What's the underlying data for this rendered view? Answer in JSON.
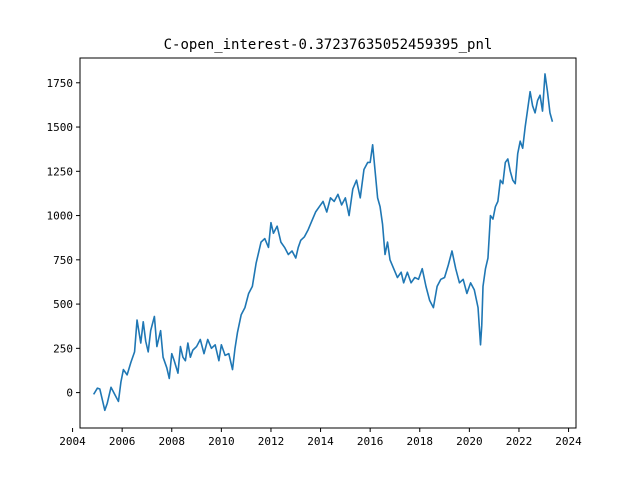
{
  "chart_data": {
    "type": "line",
    "title": "C-open_interest-0.37237635052459395_pnl",
    "xlabel": "",
    "ylabel": "",
    "xlim": [
      2004.3,
      2024.3
    ],
    "ylim": [
      -200,
      1890
    ],
    "x_ticks": [
      2004,
      2006,
      2008,
      2010,
      2012,
      2014,
      2016,
      2018,
      2020,
      2022,
      2024
    ],
    "x_tick_labels": [
      "2004",
      "2006",
      "2008",
      "2010",
      "2012",
      "2014",
      "2016",
      "2018",
      "2020",
      "2022",
      "2024"
    ],
    "y_ticks": [
      0,
      250,
      500,
      750,
      1000,
      1250,
      1500,
      1750
    ],
    "y_tick_labels": [
      "0",
      "250",
      "500",
      "750",
      "1000",
      "1250",
      "1500",
      "1750"
    ],
    "grid": false,
    "legend": "none",
    "color": "#1f77b4",
    "series": [
      {
        "x": [
          2004.85,
          2005.0,
          2005.1,
          2005.2,
          2005.3,
          2005.4,
          2005.55,
          2005.7,
          2005.85,
          2005.95,
          2006.05,
          2006.2,
          2006.35,
          2006.5,
          2006.6,
          2006.75,
          2006.85,
          2006.95,
          2007.05,
          2007.15,
          2007.3,
          2007.4,
          2007.55,
          2007.65,
          2007.8,
          2007.9,
          2008.0,
          2008.1,
          2008.25,
          2008.35,
          2008.45,
          2008.55,
          2008.65,
          2008.75,
          2008.85,
          2009.0,
          2009.15,
          2009.3,
          2009.45,
          2009.6,
          2009.75,
          2009.9,
          2010.0,
          2010.15,
          2010.3,
          2010.45,
          2010.55,
          2010.65,
          2010.8,
          2010.95,
          2011.1,
          2011.25,
          2011.4,
          2011.6,
          2011.75,
          2011.9,
          2012.0,
          2012.1,
          2012.25,
          2012.4,
          2012.55,
          2012.7,
          2012.85,
          2013.0,
          2013.1,
          2013.2,
          2013.35,
          2013.5,
          2013.65,
          2013.8,
          2013.95,
          2014.1,
          2014.25,
          2014.4,
          2014.55,
          2014.7,
          2014.85,
          2015.0,
          2015.15,
          2015.3,
          2015.45,
          2015.6,
          2015.75,
          2015.9,
          2016.0,
          2016.1,
          2016.2,
          2016.3,
          2016.4,
          2016.5,
          2016.6,
          2016.7,
          2016.8,
          2016.95,
          2017.1,
          2017.25,
          2017.35,
          2017.5,
          2017.65,
          2017.8,
          2017.95,
          2018.1,
          2018.25,
          2018.4,
          2018.55,
          2018.7,
          2018.85,
          2019.0,
          2019.15,
          2019.3,
          2019.45,
          2019.6,
          2019.75,
          2019.9,
          2020.05,
          2020.2,
          2020.35,
          2020.45,
          2020.5,
          2020.55,
          2020.65,
          2020.75,
          2020.85,
          2020.95,
          2021.05,
          2021.15,
          2021.25,
          2021.35,
          2021.45,
          2021.55,
          2021.65,
          2021.75,
          2021.85,
          2021.95,
          2022.05,
          2022.15,
          2022.25,
          2022.35,
          2022.45,
          2022.55,
          2022.65,
          2022.75,
          2022.85,
          2022.95,
          2023.05,
          2023.15,
          2023.25,
          2023.35
        ],
        "y": [
          -10,
          25,
          20,
          -40,
          -100,
          -60,
          30,
          -10,
          -50,
          60,
          130,
          100,
          170,
          230,
          410,
          280,
          400,
          290,
          230,
          350,
          430,
          260,
          350,
          200,
          140,
          80,
          220,
          180,
          110,
          260,
          200,
          180,
          280,
          200,
          240,
          260,
          300,
          220,
          300,
          250,
          270,
          180,
          270,
          210,
          220,
          130,
          250,
          340,
          440,
          480,
          560,
          600,
          730,
          850,
          870,
          820,
          960,
          900,
          940,
          850,
          820,
          780,
          800,
          760,
          820,
          860,
          880,
          920,
          970,
          1020,
          1050,
          1080,
          1020,
          1100,
          1080,
          1120,
          1060,
          1100,
          1000,
          1150,
          1200,
          1100,
          1260,
          1300,
          1300,
          1400,
          1250,
          1100,
          1050,
          950,
          780,
          850,
          750,
          700,
          650,
          680,
          620,
          680,
          620,
          650,
          640,
          700,
          600,
          520,
          480,
          600,
          640,
          650,
          720,
          800,
          700,
          620,
          640,
          560,
          620,
          580,
          480,
          270,
          380,
          600,
          700,
          760,
          1000,
          980,
          1050,
          1080,
          1200,
          1180,
          1300,
          1320,
          1250,
          1200,
          1180,
          1350,
          1420,
          1380,
          1500,
          1600,
          1700,
          1620,
          1580,
          1650,
          1680,
          1590,
          1800,
          1700,
          1580,
          1530
        ]
      }
    ]
  }
}
